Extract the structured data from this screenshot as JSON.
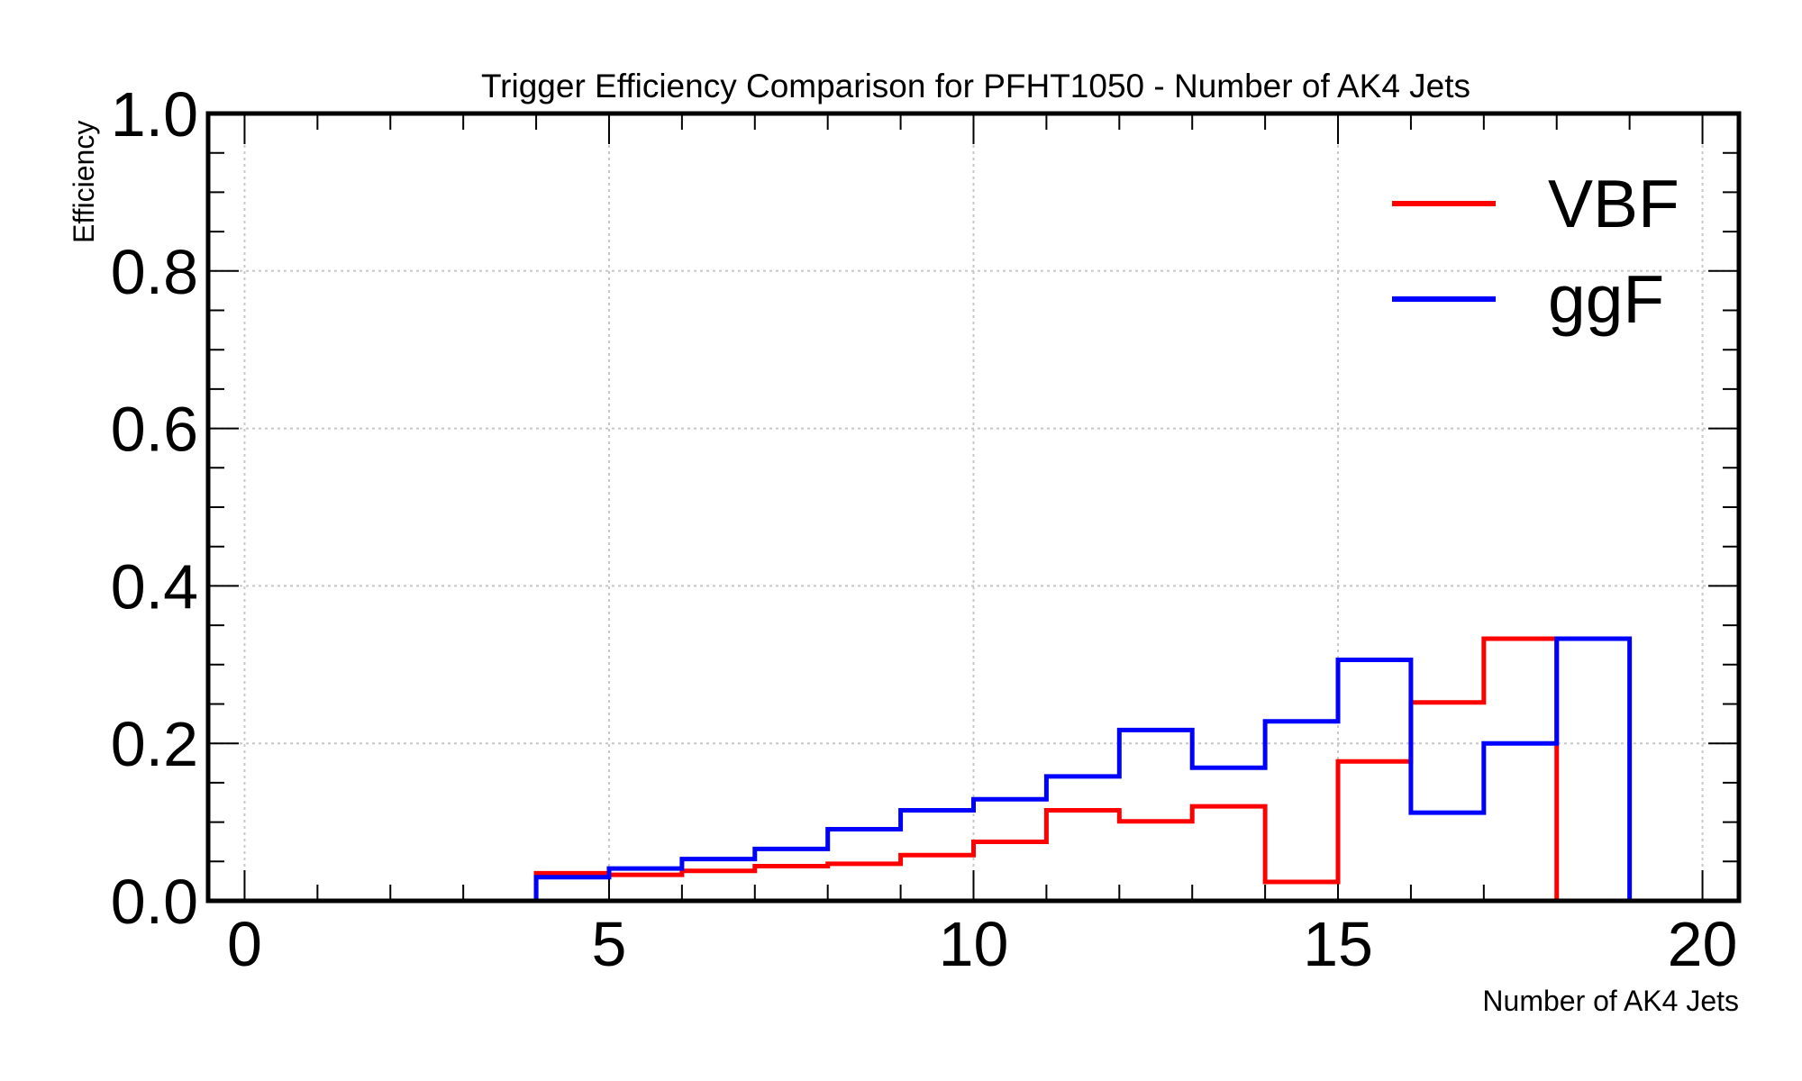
{
  "colors": {
    "vbf": "#ff0000",
    "ggf": "#0000ff",
    "frame": "#000000",
    "grid": "#c8c8c8"
  },
  "chart_data": {
    "type": "line",
    "drawstyle": "steps-histogram",
    "title": "Trigger Efficiency Comparison for PFHT1050 - Number of AK4 Jets",
    "xlabel": "Number of AK4 Jets",
    "ylabel": "Efficiency",
    "xlim": [
      -0.5,
      20.5
    ],
    "ylim": [
      0,
      1
    ],
    "grid": true,
    "legend_position": "top-right",
    "x_ticks": [
      0,
      5,
      10,
      15,
      20
    ],
    "x_tick_labels": [
      "0",
      "5",
      "10",
      "15",
      "20"
    ],
    "y_ticks": [
      0.0,
      0.2,
      0.4,
      0.6,
      0.8,
      1.0
    ],
    "y_tick_labels": [
      "0.0",
      "0.2",
      "0.4",
      "0.6",
      "0.8",
      "1.0"
    ],
    "bin_edges": [
      0,
      1,
      2,
      3,
      4,
      5,
      6,
      7,
      8,
      9,
      10,
      11,
      12,
      13,
      14,
      15,
      16,
      17,
      18,
      19,
      20
    ],
    "series": [
      {
        "name": "VBF",
        "color": "#ff0000",
        "values": [
          0,
          0,
          0,
          0,
          0.035,
          0.033,
          0.038,
          0.044,
          0.047,
          0.058,
          0.075,
          0.115,
          0.101,
          0.12,
          0.024,
          0.177,
          0.252,
          0.333,
          0,
          0
        ]
      },
      {
        "name": "ggF",
        "color": "#0000ff",
        "values": [
          0,
          0,
          0,
          0,
          0.03,
          0.041,
          0.053,
          0.066,
          0.091,
          0.115,
          0.129,
          0.158,
          0.217,
          0.169,
          0.228,
          0.306,
          0.112,
          0.2,
          0.333,
          0
        ]
      }
    ]
  }
}
